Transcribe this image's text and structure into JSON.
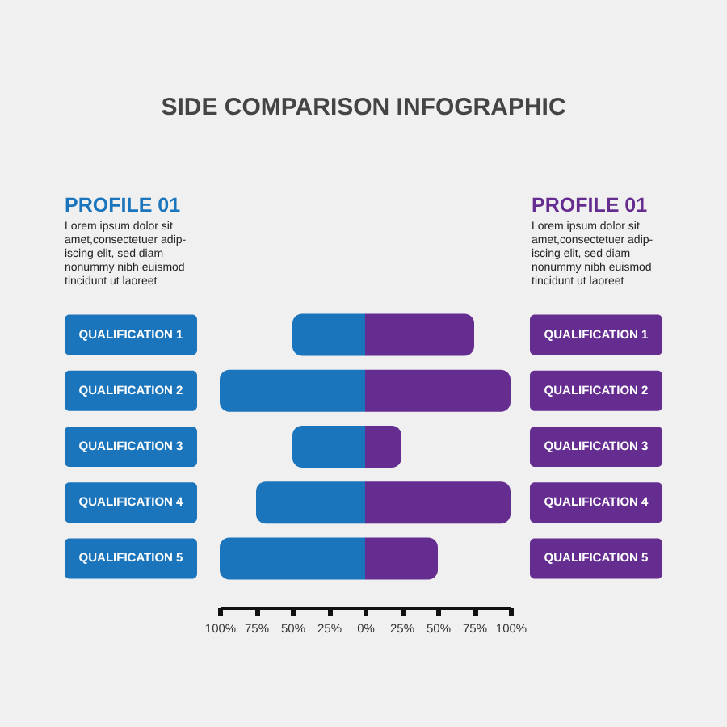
{
  "chart_data": {
    "type": "bar",
    "orientation": "horizontal",
    "stacked": true,
    "title": "SIDE COMPARISON INFOGRAPHIC",
    "categories": [
      "QUALIFICATION 1",
      "QUALIFICATION 2",
      "QUALIFICATION 3",
      "QUALIFICATION 4",
      "QUALIFICATION 5"
    ],
    "series": [
      {
        "name": "PROFILE 01",
        "color": "#1b75bc",
        "values": [
          -50,
          -100,
          -50,
          -75,
          -100
        ]
      },
      {
        "name": "PROFILE 01",
        "color": "#662d91",
        "values": [
          75,
          100,
          25,
          100,
          50
        ]
      }
    ],
    "xlim": [
      -100,
      100
    ],
    "xticks": [
      {
        "value": -100,
        "label": "100%"
      },
      {
        "value": -75,
        "label": "75%"
      },
      {
        "value": -50,
        "label": "50%"
      },
      {
        "value": -25,
        "label": "25%"
      },
      {
        "value": 0,
        "label": "0%"
      },
      {
        "value": 25,
        "label": "25%"
      },
      {
        "value": 50,
        "label": "50%"
      },
      {
        "value": 75,
        "label": "75%"
      },
      {
        "value": 100,
        "label": "100%"
      }
    ],
    "annotations": [
      "Lorem ipsum dolor sit\namet,consectetuer adip-\niscing elit, sed diam\nnonummy nibh euismod\ntincidunt ut laoreet",
      "Lorem ipsum dolor sit\namet,consectetuer adip-\niscing elit, sed diam\nnonummy nibh euismod\ntincidunt ut laoreet"
    ]
  }
}
